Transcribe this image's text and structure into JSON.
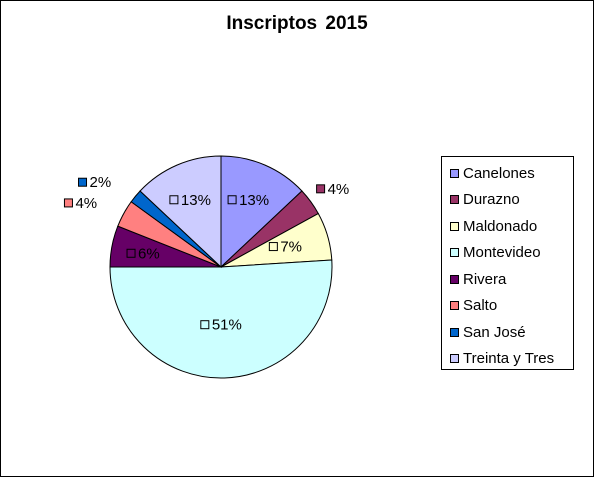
{
  "chart_data": {
    "type": "pie",
    "title": "Inscriptos  2015",
    "categories": [
      "Canelones",
      "Durazno",
      "Maldonado",
      "Montevideo",
      "Rivera",
      "Salto",
      "San José",
      "Treinta y Tres"
    ],
    "values": [
      13,
      4,
      7,
      51,
      6,
      4,
      2,
      13
    ],
    "data_labels": [
      "13%",
      "4%",
      "7%",
      "51%",
      "6%",
      "4%",
      "2%",
      "13%"
    ],
    "colors": [
      "#9999ff",
      "#993366",
      "#ffffcc",
      "#ccffff",
      "#660066",
      "#ff8080",
      "#0066cc",
      "#ccccff"
    ],
    "start_angle_deg": 0,
    "direction": "clockwise",
    "legend_position": "right"
  }
}
